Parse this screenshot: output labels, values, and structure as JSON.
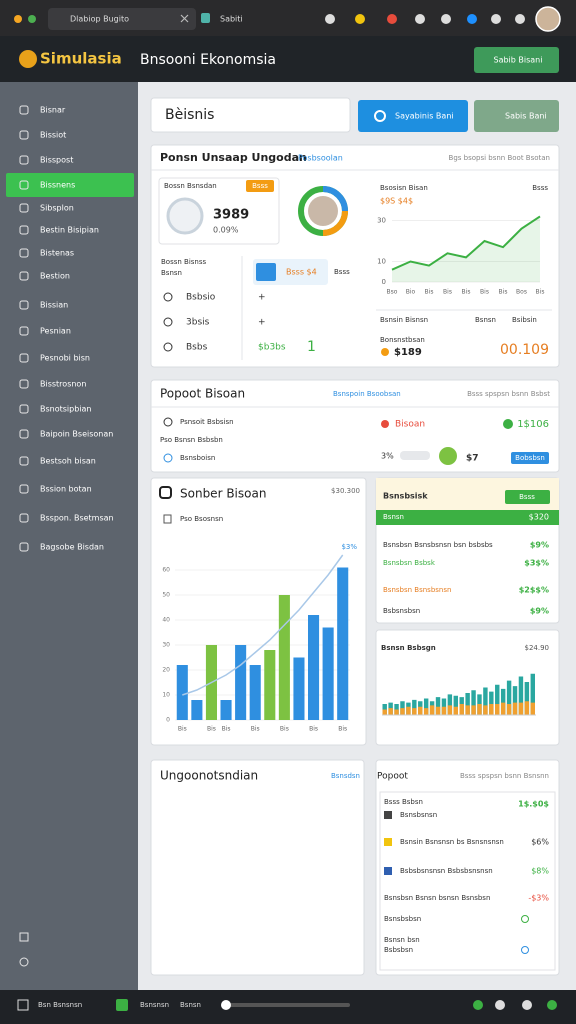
{
  "browser": {
    "tabs": [
      "Dlabiop Bugito",
      "Sabiti"
    ]
  },
  "header": {
    "logo": "Simulasia",
    "title": "Bnsooni Ekonomsia",
    "button": "Sabib Bisani"
  },
  "sidebar": {
    "items": [
      "Bisnar",
      "Bissiot",
      "Bisspost",
      "Bissnens",
      "Sibsplon",
      "Bestin Bisipian",
      "Bistenas",
      "Bestion",
      "Bissian",
      "Pesnian",
      "Pesnobi bisn",
      "Bisstrosnon",
      "Bsnotsipbian",
      "Baipoin Bseisonan",
      "Bestsoh bisan",
      "Bssion botan",
      "Bsspon. Bsetmsan",
      "Bagsobe Bisdan"
    ],
    "active": 3
  },
  "toolbar": {
    "search": "Bèisnis",
    "primary": "Sayabinis Bani",
    "secondary": "Sabis Bani"
  },
  "card1": {
    "title": "Ponsn Unsaap Ungodan",
    "tag": "Posbsoolan",
    "note": "Bgs bsopsi bsnn Boot Bsotan",
    "stat": {
      "label": "Bossn Bsnsdan",
      "badge": "Bsss",
      "value": "3989",
      "pct": "0.09%"
    },
    "list_title": "Bossn Bisnss",
    "list_sub": "Bsnsn",
    "rows": [
      [
        "Bsbsio",
        "+"
      ],
      [
        "3bsis",
        "+"
      ],
      [
        "Bsbs",
        "$b3bs"
      ]
    ],
    "mid_box": "Bsss $4",
    "mid_label": "Bsss",
    "mid_value": "1",
    "chart": {
      "title": "Bsosisn Bisan",
      "head": "$9S $4$",
      "head_right": "Bsss",
      "categories": [
        "Bso",
        "Bio",
        "Bis",
        "Bis",
        "Bis",
        "Bis",
        "Bis",
        "Bos",
        "Bis"
      ],
      "values": [
        6,
        10,
        8,
        14,
        12,
        20,
        17,
        26,
        32
      ],
      "color": "#3cb043",
      "ylim": [
        0,
        40
      ],
      "yticks": [
        0,
        10,
        30
      ]
    },
    "footer": [
      "Bsnsin Bisnsn",
      "Bsnsn",
      "Bsibsin"
    ],
    "footer_label": "Bonsnstbsan",
    "footer_value": "$189",
    "footer_total": "00.109"
  },
  "card2": {
    "title": "Popoot Bisoan",
    "center": "Bsnspoin Bsoobsan",
    "note": "Bsss spspsn bsnn Bsbst",
    "rows": [
      "Psnsoit Bsbsisn",
      "Pso Bsnsn Bsbsbn",
      "Bsnsboisn"
    ],
    "right_label": "Bisoan",
    "right_value": "1$106",
    "pct": "3%",
    "count": "$7",
    "badge": "Bobsbsn"
  },
  "card3": {
    "title": "Sonber Bisoan",
    "total": "$30.300",
    "sub": "Pso Bsosnsn",
    "corner": "$3%",
    "chart": {
      "categories": [
        "Bis",
        null,
        "Bis",
        "Bis",
        null,
        "Bis",
        null,
        "Bis",
        null,
        "Bis",
        null,
        "Bis"
      ],
      "values": [
        22,
        8,
        30,
        8,
        30,
        22,
        28,
        50,
        25,
        42,
        37,
        61
      ],
      "colors": [
        "#2f8fe0",
        "#2f8fe0",
        "#7dc242",
        "#2f8fe0",
        "#2f8fe0",
        "#2f8fe0",
        "#7dc242",
        "#7dc242",
        "#2f8fe0",
        "#2f8fe0",
        "#2f8fe0",
        "#2f8fe0"
      ],
      "trend": [
        10,
        12,
        15,
        18,
        22,
        27,
        32,
        38,
        44,
        51,
        58,
        66
      ],
      "trend_color": "#a9c8e8",
      "ylim": [
        0,
        70
      ],
      "yticks": [
        0,
        10,
        20,
        30,
        40,
        50,
        60
      ]
    },
    "panel": {
      "title": "Bsnsbsisk",
      "badge": "Bsss",
      "row_label": "Bsnsn",
      "row_value": "$320",
      "rows": [
        [
          "Bsnsbsn Bsnsbsnsn bsn bsbsbs",
          "$9%"
        ],
        [
          "Bsnsbsn Bsbsk",
          "$3$%"
        ],
        [
          "Bsnsbsn Bsnsbsnsn",
          "$2$$%"
        ],
        [
          "Bsbsnsbsn",
          "$9%"
        ]
      ]
    },
    "mini": {
      "title": "Bsnsn Bsbsgn",
      "value": "$24.90",
      "ylim": [
        0,
        40
      ],
      "series": [
        {
          "color": "#2aa7a0",
          "values": [
            8,
            9,
            8,
            10,
            9,
            11,
            10,
            12,
            10,
            13,
            12,
            15,
            14,
            13,
            16,
            18,
            15,
            20,
            17,
            22,
            19,
            25,
            21,
            28,
            24,
            30
          ]
        },
        {
          "color": "#f0a030",
          "values": [
            4,
            5,
            4,
            5,
            6,
            5,
            6,
            5,
            7,
            6,
            6,
            7,
            6,
            8,
            7,
            7,
            8,
            7,
            8,
            8,
            9,
            8,
            9,
            9,
            10,
            9
          ]
        }
      ]
    }
  },
  "card4": {
    "title": "Ungoonotsndian",
    "link": "Bsnsdsn",
    "right_title": "Popoot",
    "right_note": "Bsss spspsn bsnn Bsnsnn",
    "head": "Bsss Bsbsn",
    "head_value": "1$.$0$",
    "head_sub": "Bsnsbsnsn",
    "rows": [
      [
        "Bsnsin Bsnsnsn bs Bsnsnsnsn",
        "$6%"
      ],
      [
        "Bsbsbsnsnsn Bsbsbsnsnsn",
        "$8%"
      ],
      [
        "Bsnsbsn Bsnsn bsnsn Bsnsbsn",
        "-$3%"
      ]
    ],
    "tail": [
      "Bsnsbsbsn",
      "Bsnsn bsn",
      "Bsbsbsn"
    ]
  },
  "footer": {
    "items": [
      "Bsn Bsnsnsn",
      "Bsnsnsn",
      "Bsnsn"
    ]
  }
}
